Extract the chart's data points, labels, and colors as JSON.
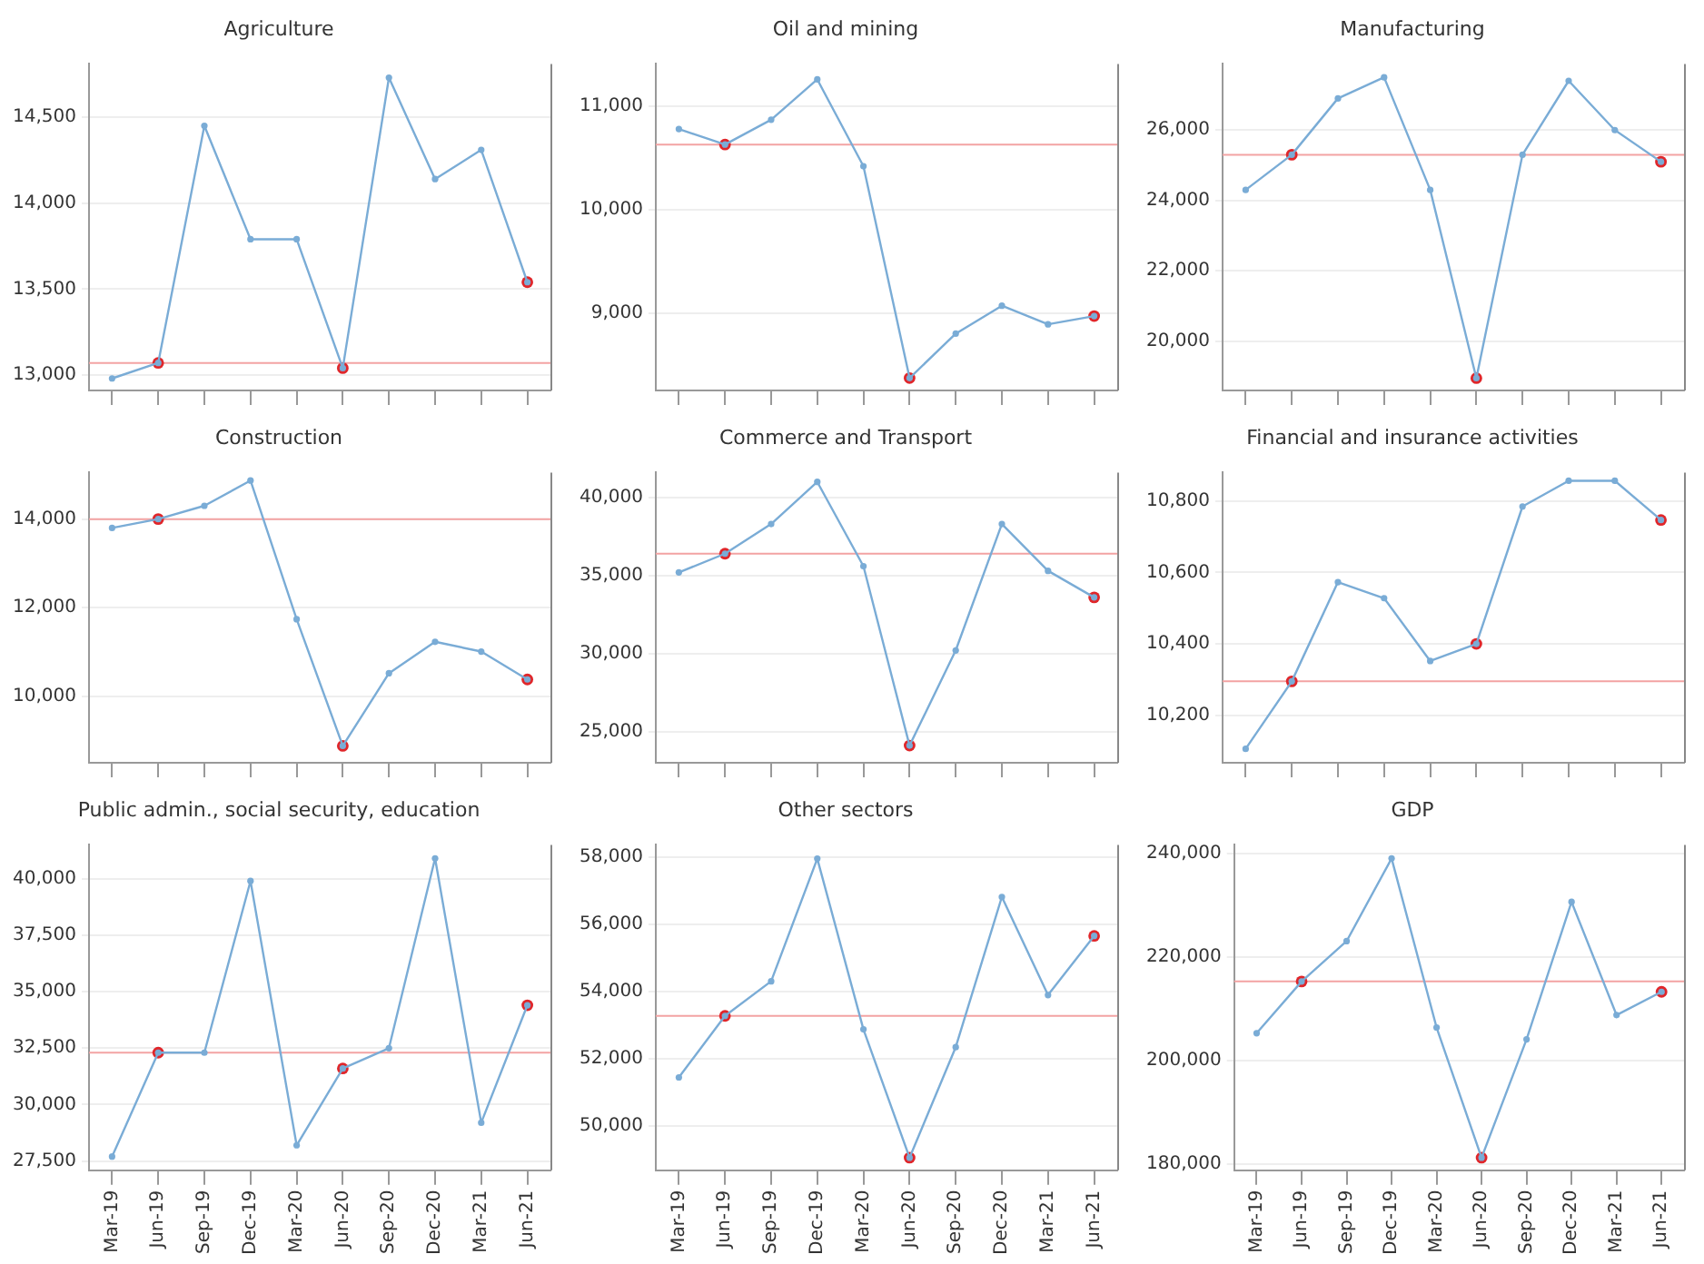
{
  "chart_data": [
    {
      "type": "line",
      "title": "Agriculture",
      "categories": [
        null,
        null,
        null,
        null,
        null,
        null,
        null,
        null,
        null,
        null
      ],
      "tick_labels": "y",
      "grid": "y",
      "marker": "circle",
      "series": [
        {
          "color": "#7aacd6",
          "values": [
            12980,
            13070,
            14450,
            13790,
            13790,
            13040,
            14730,
            14140,
            14310,
            13540
          ]
        },
        {
          "type": "scatter",
          "color": "#e0262a",
          "values": [
            null,
            13070,
            null,
            null,
            null,
            13040,
            null,
            null,
            null,
            13540
          ]
        }
      ],
      "ylim": [
        12910,
        14810
      ],
      "yticks": [
        {
          "value": 13000,
          "label": "13,000"
        },
        {
          "value": 13500,
          "label": "13,500"
        },
        {
          "value": 14000,
          "label": "14,000"
        },
        {
          "value": 14500,
          "label": "14,500"
        }
      ],
      "ref_lines": [
        {
          "axis": "y",
          "value": 13070,
          "color": "#f3a3a3"
        }
      ]
    },
    {
      "type": "line",
      "title": "Oil and mining",
      "categories": [
        null,
        null,
        null,
        null,
        null,
        null,
        null,
        null,
        null,
        null
      ],
      "tick_labels": "y",
      "grid": "y",
      "marker": "circle",
      "series": [
        {
          "color": "#7aacd6",
          "values": [
            10780,
            10630,
            10870,
            11260,
            10420,
            8370,
            8800,
            9070,
            8890,
            8970
          ]
        },
        {
          "type": "scatter",
          "color": "#e0262a",
          "values": [
            null,
            10630,
            null,
            null,
            null,
            8370,
            null,
            null,
            null,
            8970
          ]
        }
      ],
      "ylim": [
        8250,
        11410
      ],
      "yticks": [
        {
          "value": 9000,
          "label": "9,000"
        },
        {
          "value": 10000,
          "label": "10,000"
        },
        {
          "value": 11000,
          "label": "11,000"
        }
      ],
      "ref_lines": [
        {
          "axis": "y",
          "value": 10630,
          "color": "#f3a3a3"
        }
      ]
    },
    {
      "type": "line",
      "title": "Manufacturing",
      "categories": [
        null,
        null,
        null,
        null,
        null,
        null,
        null,
        null,
        null,
        null
      ],
      "tick_labels": "y",
      "grid": "y",
      "marker": "circle",
      "series": [
        {
          "color": "#7aacd6",
          "values": [
            24300,
            25300,
            26900,
            27500,
            24300,
            18950,
            25300,
            27400,
            26000,
            25100
          ]
        },
        {
          "type": "scatter",
          "color": "#e0262a",
          "values": [
            null,
            25300,
            null,
            null,
            null,
            18950,
            null,
            null,
            null,
            25100
          ]
        }
      ],
      "ylim": [
        18600,
        27880
      ],
      "yticks": [
        {
          "value": 20000,
          "label": "20,000"
        },
        {
          "value": 22000,
          "label": "22,000"
        },
        {
          "value": 24000,
          "label": "24,000"
        },
        {
          "value": 26000,
          "label": "26,000"
        }
      ],
      "ref_lines": [
        {
          "axis": "y",
          "value": 25300,
          "color": "#f3a3a3"
        }
      ]
    },
    {
      "type": "line",
      "title": "Construction",
      "categories": [
        null,
        null,
        null,
        null,
        null,
        null,
        null,
        null,
        null,
        null
      ],
      "tick_labels": "y",
      "grid": "y",
      "marker": "circle",
      "series": [
        {
          "color": "#7aacd6",
          "values": [
            13800,
            14000,
            14300,
            14870,
            11740,
            8880,
            10520,
            11230,
            11010,
            10380
          ]
        },
        {
          "type": "scatter",
          "color": "#e0262a",
          "values": [
            null,
            14000,
            null,
            null,
            null,
            8880,
            null,
            null,
            null,
            10380
          ]
        }
      ],
      "ylim": [
        8500,
        15050
      ],
      "yticks": [
        {
          "value": 10000,
          "label": "10,000"
        },
        {
          "value": 12000,
          "label": "12,000"
        },
        {
          "value": 14000,
          "label": "14,000"
        }
      ],
      "ref_lines": [
        {
          "axis": "y",
          "value": 14000,
          "color": "#f3a3a3"
        }
      ]
    },
    {
      "type": "line",
      "title": "Commerce and Transport",
      "categories": [
        null,
        null,
        null,
        null,
        null,
        null,
        null,
        null,
        null,
        null
      ],
      "tick_labels": "y",
      "grid": "y",
      "marker": "circle",
      "series": [
        {
          "color": "#7aacd6",
          "values": [
            35200,
            36400,
            38300,
            41000,
            35600,
            24100,
            30200,
            38300,
            35300,
            33600
          ]
        },
        {
          "type": "scatter",
          "color": "#e0262a",
          "values": [
            null,
            36400,
            null,
            null,
            null,
            24100,
            null,
            null,
            null,
            33600
          ]
        }
      ],
      "ylim": [
        23000,
        41600
      ],
      "yticks": [
        {
          "value": 25000,
          "label": "25,000"
        },
        {
          "value": 30000,
          "label": "30,000"
        },
        {
          "value": 35000,
          "label": "35,000"
        },
        {
          "value": 40000,
          "label": "40,000"
        }
      ],
      "ref_lines": [
        {
          "axis": "y",
          "value": 36400,
          "color": "#f3a3a3"
        }
      ]
    },
    {
      "type": "line",
      "title": "Financial and insurance activities",
      "categories": [
        null,
        null,
        null,
        null,
        null,
        null,
        null,
        null,
        null,
        null
      ],
      "tick_labels": "y",
      "grid": "y",
      "marker": "circle",
      "series": [
        {
          "color": "#7aacd6",
          "values": [
            10106,
            10295,
            10573,
            10528,
            10352,
            10400,
            10785,
            10857,
            10857,
            10747
          ]
        },
        {
          "type": "scatter",
          "color": "#e0262a",
          "values": [
            null,
            10295,
            null,
            null,
            null,
            10400,
            null,
            null,
            null,
            10747
          ]
        }
      ],
      "ylim": [
        10067,
        10880
      ],
      "yticks": [
        {
          "value": 10200,
          "label": "10,200"
        },
        {
          "value": 10400,
          "label": "10,400"
        },
        {
          "value": 10600,
          "label": "10,600"
        },
        {
          "value": 10800,
          "label": "10,800"
        }
      ],
      "ref_lines": [
        {
          "axis": "y",
          "value": 10295,
          "color": "#f3a3a3"
        }
      ]
    },
    {
      "type": "line",
      "title": "Public admin., social security, education",
      "categories": [
        "Mar-19",
        "Jun-19",
        "Sep-19",
        "Dec-19",
        "Mar-20",
        "Jun-20",
        "Sep-20",
        "Dec-20",
        "Mar-21",
        "Jun-21"
      ],
      "grid": "y",
      "marker": "circle",
      "series": [
        {
          "color": "#7aacd6",
          "values": [
            27700,
            32300,
            32300,
            39900,
            28200,
            31600,
            32500,
            40900,
            29200,
            34400
          ]
        },
        {
          "type": "scatter",
          "color": "#e0262a",
          "values": [
            null,
            32300,
            null,
            null,
            null,
            31600,
            null,
            null,
            null,
            34400
          ]
        }
      ],
      "ylim": [
        27100,
        41500
      ],
      "yticks": [
        {
          "value": 27500,
          "label": "27,500"
        },
        {
          "value": 30000,
          "label": "30,000"
        },
        {
          "value": 32500,
          "label": "32,500"
        },
        {
          "value": 35000,
          "label": "35,000"
        },
        {
          "value": 37500,
          "label": "37,500"
        },
        {
          "value": 40000,
          "label": "40,000"
        }
      ],
      "ref_lines": [
        {
          "axis": "y",
          "value": 32300,
          "color": "#f3a3a3"
        }
      ]
    },
    {
      "type": "line",
      "title": "Other sectors",
      "categories": [
        "Mar-19",
        "Jun-19",
        "Sep-19",
        "Dec-19",
        "Mar-20",
        "Jun-20",
        "Sep-20",
        "Dec-20",
        "Mar-21",
        "Jun-21"
      ],
      "grid": "y",
      "marker": "circle",
      "series": [
        {
          "color": "#7aacd6",
          "values": [
            51450,
            53280,
            54310,
            57960,
            52880,
            49060,
            52350,
            56820,
            53900,
            55660
          ]
        },
        {
          "type": "scatter",
          "color": "#e0262a",
          "values": [
            null,
            53280,
            null,
            null,
            null,
            49060,
            null,
            null,
            null,
            55660
          ]
        }
      ],
      "ylim": [
        48690,
        58370
      ],
      "yticks": [
        {
          "value": 50000,
          "label": "50,000"
        },
        {
          "value": 52000,
          "label": "52,000"
        },
        {
          "value": 54000,
          "label": "54,000"
        },
        {
          "value": 56000,
          "label": "56,000"
        },
        {
          "value": 58000,
          "label": "58,000"
        }
      ],
      "ref_lines": [
        {
          "axis": "y",
          "value": 53280,
          "color": "#f3a3a3"
        }
      ]
    },
    {
      "type": "line",
      "title": "GDP",
      "categories": [
        "Mar-19",
        "Jun-19",
        "Sep-19",
        "Dec-19",
        "Mar-20",
        "Jun-20",
        "Sep-20",
        "Dec-20",
        "Mar-21",
        "Jun-21"
      ],
      "grid": "y",
      "marker": "circle",
      "series": [
        {
          "color": "#7aacd6",
          "values": [
            205300,
            215300,
            223100,
            239100,
            206400,
            181200,
            204100,
            230700,
            208800,
            213300
          ]
        },
        {
          "type": "scatter",
          "color": "#e0262a",
          "values": [
            null,
            215300,
            null,
            null,
            null,
            181200,
            null,
            null,
            null,
            213300
          ]
        }
      ],
      "ylim": [
        178800,
        241730
      ],
      "yticks": [
        {
          "value": 180000,
          "label": "180,000"
        },
        {
          "value": 200000,
          "label": "200,000"
        },
        {
          "value": 220000,
          "label": "220,000"
        },
        {
          "value": 240000,
          "label": "240,000"
        }
      ],
      "ref_lines": [
        {
          "axis": "y",
          "value": 215300,
          "color": "#f3a3a3"
        }
      ]
    }
  ]
}
